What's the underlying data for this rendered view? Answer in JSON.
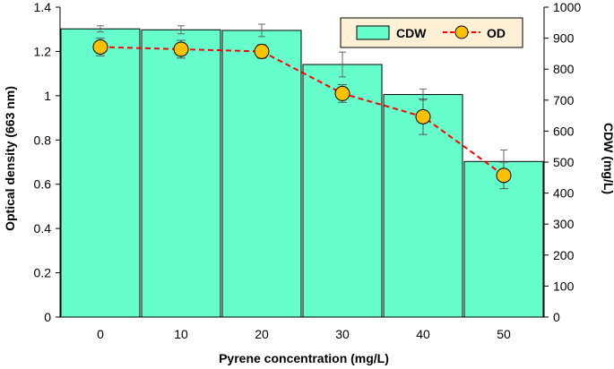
{
  "chart_data": {
    "type": "bar",
    "xlabel": "Pyrene concentration (mg/L)",
    "categories": [
      "0",
      "10",
      "20",
      "30",
      "40",
      "50"
    ],
    "y_left": {
      "label": "Optical density (663 nm)",
      "range": [
        0,
        1.4
      ],
      "ticks": [
        "0",
        "0.2",
        "0.4",
        "0.6",
        "0.8",
        "1",
        "1.2",
        "1.4"
      ]
    },
    "y_right": {
      "label": "CDW (mg/L)",
      "range": [
        0,
        1000
      ],
      "ticks": [
        "0",
        "100",
        "200",
        "300",
        "400",
        "500",
        "600",
        "700",
        "800",
        "900",
        "1000"
      ]
    },
    "series": [
      {
        "name": "CDW",
        "type": "bar",
        "axis": "right",
        "values": [
          930,
          927,
          925,
          815,
          718,
          502
        ],
        "errors": [
          10,
          13,
          20,
          40,
          18,
          37
        ],
        "color": "#66ffcc"
      },
      {
        "name": "OD",
        "type": "line",
        "axis": "left",
        "values": [
          1.22,
          1.21,
          1.2,
          1.01,
          0.905,
          0.64
        ],
        "errors": [
          0.04,
          0.04,
          0.03,
          0.04,
          0.08,
          0.06
        ],
        "color": "#ffc000",
        "line_color": "#ff0000"
      }
    ],
    "legend": {
      "position": "top-right",
      "entries": [
        "CDW",
        "OD"
      ]
    },
    "grid": false
  }
}
